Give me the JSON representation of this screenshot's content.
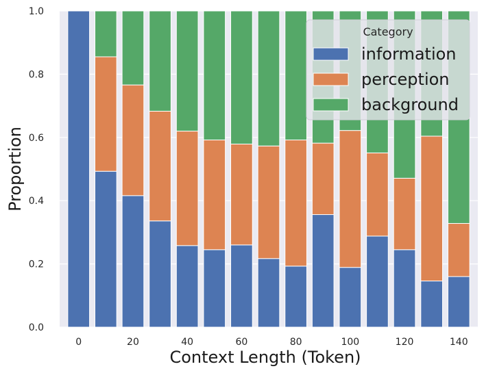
{
  "chart_data": {
    "type": "bar",
    "stacked": true,
    "proportional": true,
    "x": [
      0,
      10,
      20,
      30,
      40,
      50,
      60,
      70,
      80,
      90,
      100,
      110,
      120,
      130,
      140
    ],
    "series": [
      {
        "name": "information",
        "color": "#4C72B0",
        "values": [
          1.0,
          0.493,
          0.416,
          0.336,
          0.258,
          0.245,
          0.26,
          0.217,
          0.193,
          0.356,
          0.189,
          0.288,
          0.245,
          0.146,
          0.16
        ]
      },
      {
        "name": "perception",
        "color": "#DD8452",
        "values": [
          0.0,
          0.362,
          0.35,
          0.347,
          0.362,
          0.347,
          0.319,
          0.356,
          0.399,
          0.226,
          0.433,
          0.263,
          0.226,
          0.458,
          0.168
        ]
      },
      {
        "name": "background",
        "color": "#55A868",
        "values": [
          0.0,
          0.145,
          0.234,
          0.317,
          0.38,
          0.408,
          0.421,
          0.427,
          0.408,
          0.418,
          0.378,
          0.449,
          0.529,
          0.396,
          0.672
        ]
      }
    ],
    "title": "",
    "xlabel": "Context Length (Token)",
    "ylabel": "Proportion",
    "xticks": [
      0,
      20,
      40,
      60,
      80,
      100,
      120,
      140
    ],
    "yticks": [
      "0.0",
      "0.2",
      "0.4",
      "0.6",
      "0.8",
      "1.0"
    ],
    "xlim": [
      -7,
      147
    ],
    "ylim": [
      0,
      1
    ],
    "grid": true,
    "legend": {
      "title": "Category",
      "placement": "top-right"
    },
    "background_color": "#EAEAF2"
  }
}
